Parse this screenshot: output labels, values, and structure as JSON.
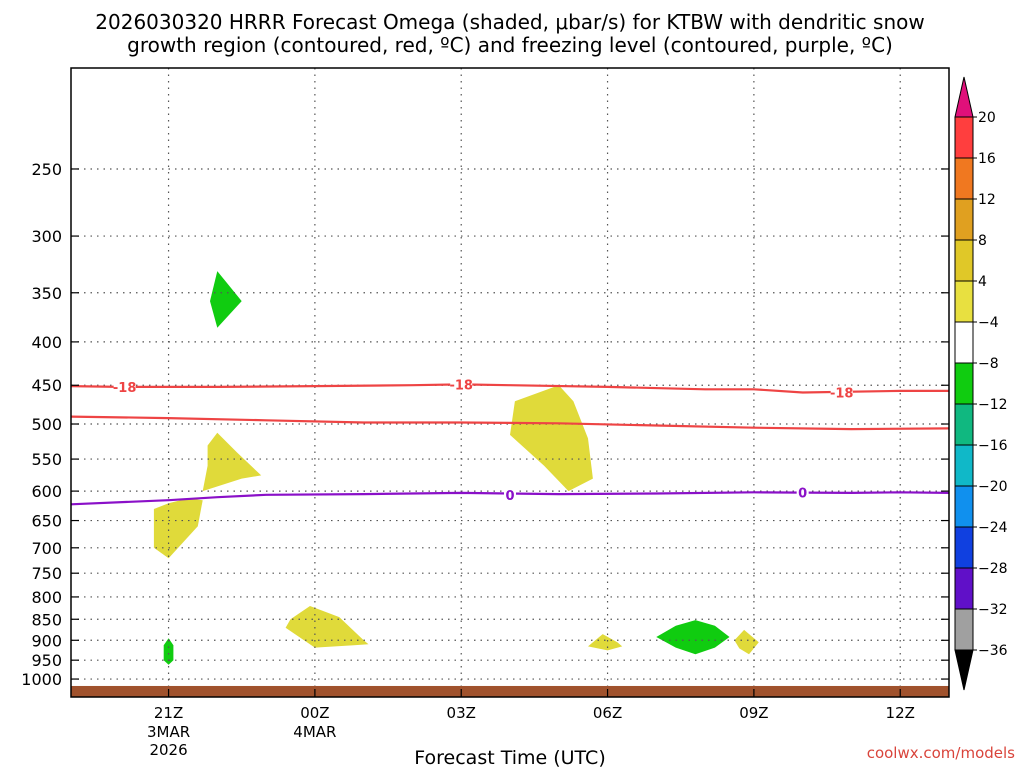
{
  "chart_data": {
    "type": "time-height",
    "title_line1": "2026030320 HRRR Forecast Omega (shaded, μbar/s) for KTBW with dendritic snow",
    "title_line2": "growth region (contoured, red, ºC) and freezing level (contoured, purple, ºC)",
    "xlabel": "Forecast Time (UTC)",
    "credit": "coolwx.com/models",
    "x_range_hours": [
      -1.0,
      17.0
    ],
    "x_ticks": [
      {
        "hour": 1,
        "label": "21Z",
        "sub1": "3MAR",
        "sub2": "2026"
      },
      {
        "hour": 4,
        "label": "00Z",
        "sub1": "4MAR",
        "sub2": ""
      },
      {
        "hour": 7,
        "label": "03Z",
        "sub1": "",
        "sub2": ""
      },
      {
        "hour": 10,
        "label": "06Z",
        "sub1": "",
        "sub2": ""
      },
      {
        "hour": 13,
        "label": "09Z",
        "sub1": "",
        "sub2": ""
      },
      {
        "hour": 16,
        "label": "12Z",
        "sub1": "",
        "sub2": ""
      }
    ],
    "y_range_hpa": [
      1050,
      190
    ],
    "y_scale": "log-pressure",
    "y_ticks": [
      250,
      300,
      350,
      400,
      450,
      500,
      550,
      600,
      650,
      700,
      750,
      800,
      850,
      900,
      950,
      1000
    ],
    "grid": true,
    "colorbar": {
      "labels": [
        "20",
        "16",
        "12",
        "8",
        "4",
        "−4",
        "−8",
        "−12",
        "−16",
        "−20",
        "−24",
        "−28",
        "−32",
        "−36"
      ],
      "colors": [
        "#ff3e3e",
        "#f07820",
        "#e0a020",
        "#e0c828",
        "#e8e040",
        "#ffffff",
        "#10cc10",
        "#10b880",
        "#10b8c8",
        "#1090ee",
        "#1040e0",
        "#6010c8",
        "#a010c0",
        "#a0a0a0"
      ],
      "top_arrow_color": "#e0107a",
      "bottom_arrow_color": "#000000"
    },
    "contours": [
      {
        "name": "-18",
        "color": "#ee4444",
        "points": [
          [
            -1.0,
            451
          ],
          [
            0.0,
            452
          ],
          [
            2.0,
            452
          ],
          [
            4.0,
            451
          ],
          [
            6.0,
            450
          ],
          [
            7.0,
            449
          ],
          [
            8.0,
            450
          ],
          [
            10.0,
            452
          ],
          [
            12.0,
            455
          ],
          [
            13.0,
            455
          ],
          [
            14.0,
            459
          ],
          [
            16.0,
            457
          ],
          [
            17.0,
            457
          ]
        ],
        "labels": [
          [
            0.1,
            452
          ],
          [
            7.0,
            449
          ],
          [
            14.8,
            459
          ]
        ]
      },
      {
        "name": "",
        "color": "#ee4444",
        "points": [
          [
            -1.0,
            490
          ],
          [
            1.0,
            492
          ],
          [
            3.0,
            495
          ],
          [
            5.0,
            498
          ],
          [
            7.0,
            498
          ],
          [
            9.0,
            499
          ],
          [
            11.0,
            502
          ],
          [
            13.0,
            505
          ],
          [
            15.0,
            507
          ],
          [
            17.0,
            506
          ]
        ],
        "labels": []
      },
      {
        "name": "0",
        "color": "#8a10c8",
        "points": [
          [
            -1.0,
            622
          ],
          [
            1.0,
            615
          ],
          [
            2.0,
            610
          ],
          [
            3.0,
            606
          ],
          [
            5.0,
            605
          ],
          [
            7.0,
            603
          ],
          [
            9.0,
            605
          ],
          [
            11.0,
            604
          ],
          [
            13.0,
            602
          ],
          [
            15.0,
            603
          ],
          [
            16.0,
            602
          ],
          [
            17.0,
            603
          ]
        ],
        "labels": [
          [
            8.0,
            606
          ],
          [
            14.0,
            602
          ]
        ]
      }
    ],
    "shaded_regions": [
      {
        "value_range": [
          -8,
          -4
        ],
        "color": "#10cc10",
        "points": [
          [
            2.0,
            330
          ],
          [
            2.5,
            358
          ],
          [
            2.0,
            385
          ],
          [
            1.85,
            358
          ]
        ]
      },
      {
        "value_range": [
          4,
          8
        ],
        "color": "#e0da3a",
        "points": [
          [
            1.0,
            620
          ],
          [
            1.4,
            612
          ],
          [
            1.7,
            615
          ],
          [
            1.6,
            660
          ],
          [
            1.0,
            720
          ],
          [
            0.7,
            700
          ],
          [
            0.7,
            630
          ]
        ]
      },
      {
        "value_range": [
          4,
          8
        ],
        "color": "#e0da3a",
        "points": [
          [
            2.0,
            512
          ],
          [
            2.4,
            540
          ],
          [
            2.9,
            575
          ],
          [
            2.5,
            580
          ],
          [
            1.7,
            600
          ],
          [
            1.8,
            560
          ],
          [
            1.8,
            530
          ]
        ]
      },
      {
        "value_range": [
          4,
          8
        ],
        "color": "#e0da3a",
        "points": [
          [
            9.0,
            450
          ],
          [
            9.3,
            470
          ],
          [
            9.6,
            520
          ],
          [
            9.7,
            580
          ],
          [
            9.2,
            600
          ],
          [
            8.7,
            560
          ],
          [
            8.0,
            515
          ],
          [
            8.1,
            470
          ]
        ]
      },
      {
        "value_range": [
          4,
          8
        ],
        "color": "#e0da3a",
        "points": [
          [
            3.9,
            820
          ],
          [
            4.5,
            845
          ],
          [
            5.0,
            900
          ],
          [
            5.1,
            910
          ],
          [
            4.8,
            912
          ],
          [
            4.0,
            918
          ],
          [
            3.4,
            870
          ],
          [
            3.5,
            850
          ]
        ]
      },
      {
        "value_range": [
          -8,
          -4
        ],
        "color": "#10cc10",
        "points": [
          [
            1.0,
            895
          ],
          [
            1.1,
            912
          ],
          [
            1.1,
            950
          ],
          [
            1.0,
            962
          ],
          [
            0.9,
            950
          ],
          [
            0.9,
            912
          ]
        ]
      },
      {
        "value_range": [
          4,
          8
        ],
        "color": "#e0da3a",
        "points": [
          [
            9.9,
            885
          ],
          [
            10.2,
            905
          ],
          [
            10.3,
            915
          ],
          [
            10.0,
            925
          ],
          [
            9.6,
            915
          ]
        ]
      },
      {
        "value_range": [
          -8,
          -4
        ],
        "color": "#10cc10",
        "points": [
          [
            11.8,
            852
          ],
          [
            12.2,
            865
          ],
          [
            12.5,
            892
          ],
          [
            12.2,
            918
          ],
          [
            11.8,
            935
          ],
          [
            11.4,
            918
          ],
          [
            11.0,
            892
          ],
          [
            11.4,
            865
          ]
        ]
      },
      {
        "value_range": [
          4,
          8
        ],
        "color": "#e0da3a",
        "points": [
          [
            12.8,
            875
          ],
          [
            13.1,
            905
          ],
          [
            12.9,
            935
          ],
          [
            12.7,
            920
          ],
          [
            12.6,
            900
          ]
        ]
      }
    ],
    "terrain": {
      "color": "#a0522d",
      "top_hpa": 1019
    }
  }
}
